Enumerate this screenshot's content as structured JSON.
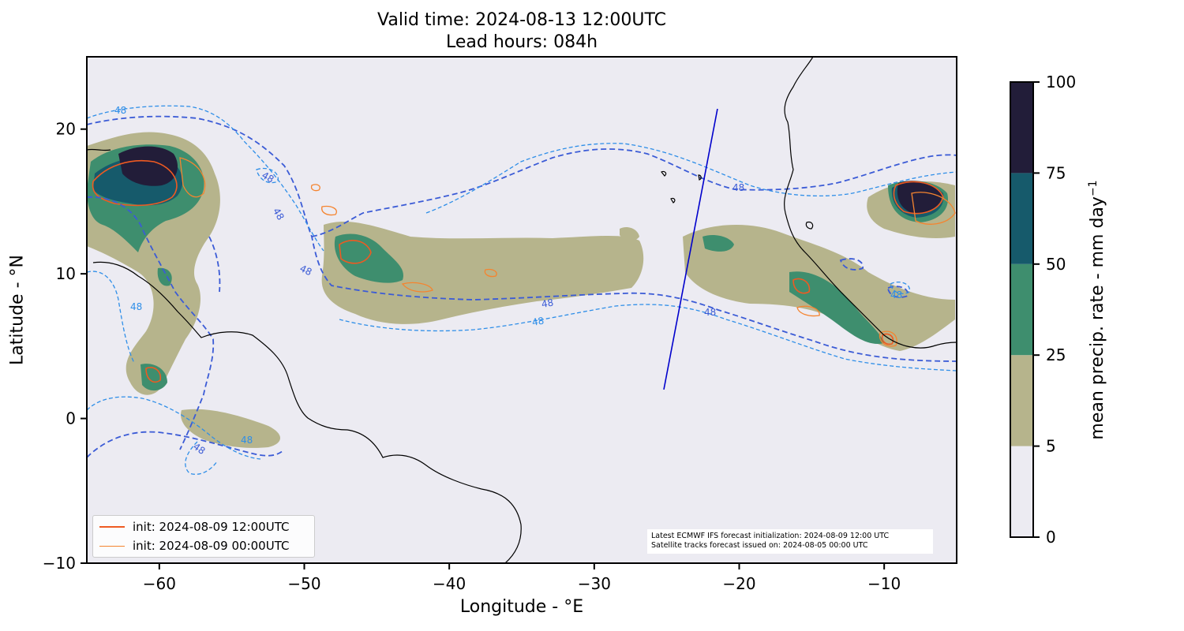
{
  "title": {
    "valid_time": "Valid time: 2024-08-13 12:00UTC",
    "lead_hours": "Lead hours: 084h"
  },
  "axes": {
    "xlabel": "Longitude - °E",
    "ylabel": "Latitude - °N",
    "xlim": [
      -65,
      -5
    ],
    "ylim": [
      -10,
      25
    ],
    "xticks": [
      -60,
      -50,
      -40,
      -30,
      -20,
      -10
    ],
    "yticks": [
      -10,
      0,
      10,
      20
    ],
    "xtick_labels": [
      "−60",
      "−50",
      "−40",
      "−30",
      "−20",
      "−10"
    ],
    "ytick_labels": [
      "−10",
      "0",
      "10",
      "20"
    ]
  },
  "colorbar": {
    "label": "mean precip. rate - mm day",
    "label_superscript": "−1",
    "bounds": [
      0,
      5,
      25,
      50,
      75,
      100
    ],
    "tick_labels": [
      "0",
      "5",
      "25",
      "50",
      "75",
      "100"
    ],
    "colors": [
      "#ecebf2",
      "#b6b48c",
      "#3e8e6e",
      "#165a6b",
      "#221d39"
    ]
  },
  "legend": {
    "items": [
      {
        "label": "init: 2024-08-09 12:00UTC",
        "color": "#ee5a22"
      },
      {
        "label": "init: 2024-08-09 00:00UTC",
        "color": "#f5842f"
      }
    ]
  },
  "note": {
    "line1": "Latest ECMWF IFS forecast initialization: 2024-08-09 12:00 UTC",
    "line2": "Satellite tracks forecast issued on: 2024-08-05 00:00 UTC"
  },
  "contour_labels": [
    "48",
    "48",
    "48",
    "48",
    "48",
    "48",
    "48",
    "48",
    "48",
    "48",
    "48",
    "48"
  ],
  "satellite_track": {
    "start": [
      -25.2,
      2.0
    ],
    "end": [
      -21.5,
      21.4
    ],
    "color": "#0000cc"
  },
  "colors": {
    "background": "#ecebf2",
    "coastline": "#000000",
    "contour_48_dark": "#3b5bd6",
    "contour_48_light": "#2e8ee8"
  }
}
